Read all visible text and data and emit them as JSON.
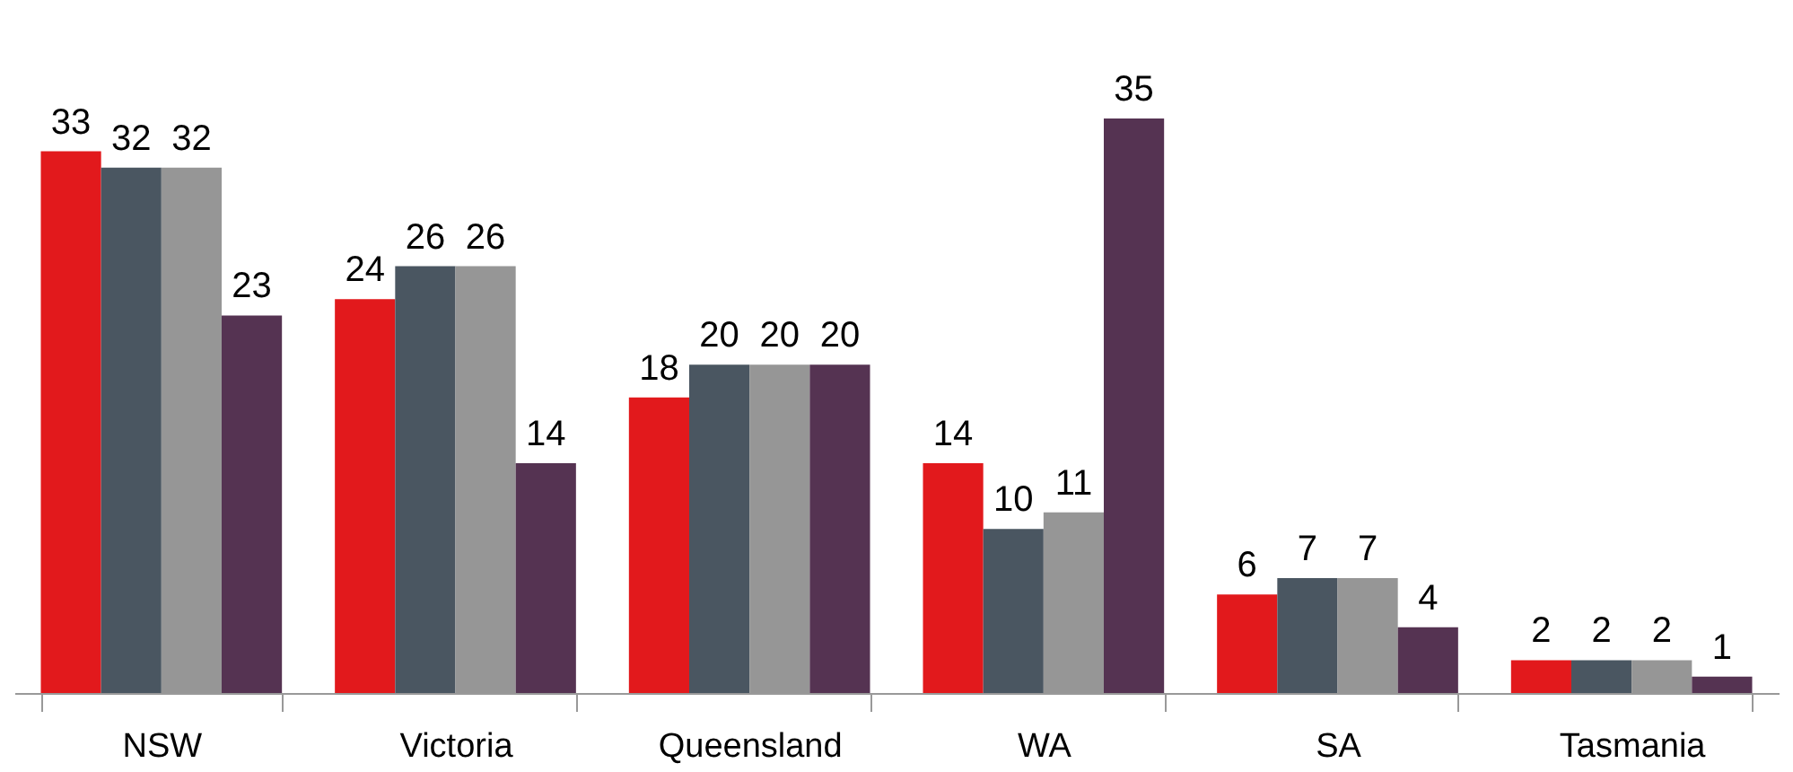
{
  "chart_data": {
    "type": "bar",
    "categories": [
      "NSW",
      "Victoria",
      "Queensland",
      "WA",
      "SA",
      "Tasmania"
    ],
    "series": [
      {
        "color": "#e2191c",
        "values": [
          33,
          24,
          18,
          14,
          6,
          2
        ]
      },
      {
        "color": "#4a5661",
        "values": [
          32,
          26,
          20,
          10,
          7,
          2
        ]
      },
      {
        "color": "#969696",
        "values": [
          32,
          26,
          20,
          11,
          7,
          2
        ]
      },
      {
        "color": "#553352",
        "values": [
          23,
          14,
          20,
          35,
          4,
          1
        ]
      }
    ],
    "data_labels": true,
    "grid": false,
    "legend": false,
    "tick_labels": "x"
  }
}
